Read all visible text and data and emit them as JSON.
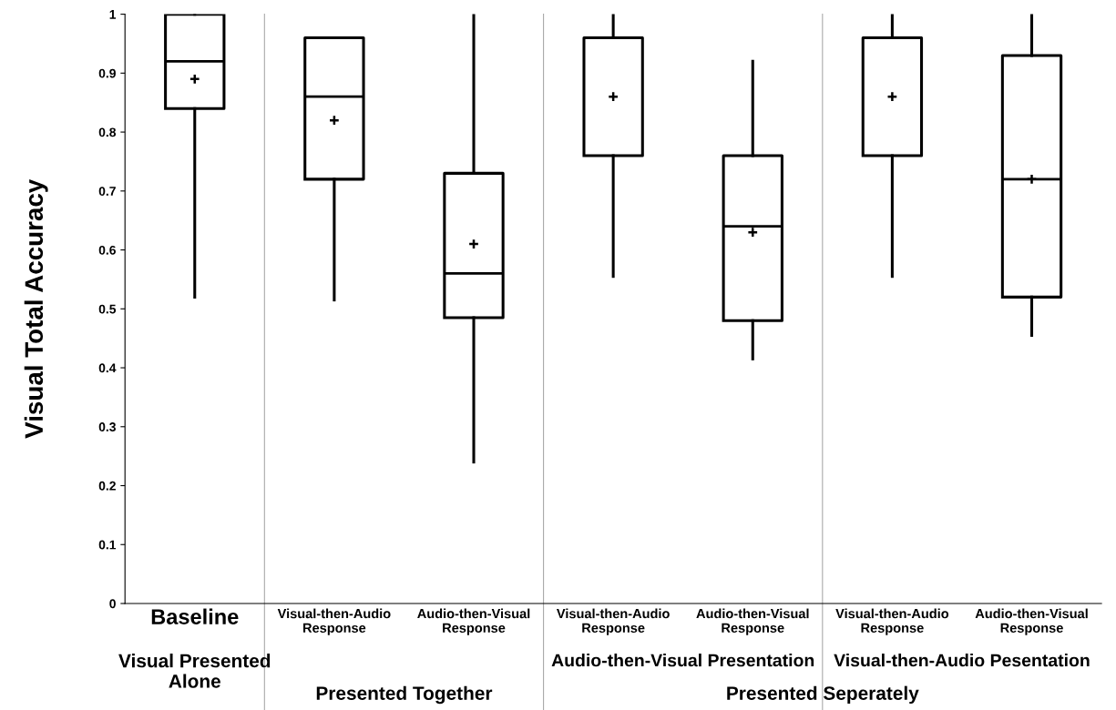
{
  "chart_data": {
    "type": "box",
    "ylabel": "Visual Total Accuracy",
    "categories": [
      "Baseline",
      "Visual-then-Audio\nResponse",
      "Audio-then-Visual\nResponse",
      "Visual-then-Audio\nResponse",
      "Audio-then-Visual\nResponse",
      "Visual-then-Audio\nResponse",
      "Audio-then-Visual\nResponse"
    ],
    "boxes": [
      {
        "low": 0.52,
        "q1": 0.84,
        "median": 0.92,
        "q3": 1.0,
        "high": 1.0,
        "mean": 0.89
      },
      {
        "low": 0.515,
        "q1": 0.72,
        "median": 0.86,
        "q3": 0.96,
        "high": 0.96,
        "mean": 0.82
      },
      {
        "low": 0.24,
        "q1": 0.485,
        "median": 0.56,
        "q3": 0.73,
        "high": 1.0,
        "mean": 0.61
      },
      {
        "low": 0.555,
        "q1": 0.76,
        "median": 0.96,
        "q3": 0.96,
        "high": 1.0,
        "mean": 0.86
      },
      {
        "low": 0.415,
        "q1": 0.48,
        "median": 0.64,
        "q3": 0.76,
        "high": 0.92,
        "mean": 0.63
      },
      {
        "low": 0.555,
        "q1": 0.76,
        "median": 0.96,
        "q3": 0.96,
        "high": 1.0,
        "mean": 0.86
      },
      {
        "low": 0.455,
        "q1": 0.52,
        "median": 0.72,
        "q3": 0.93,
        "high": 1.0,
        "mean": 0.72
      }
    ],
    "ylim": [
      0,
      1
    ],
    "yticks": [
      0,
      0.1,
      0.2,
      0.3,
      0.4,
      0.5,
      0.6,
      0.7,
      0.8,
      0.9,
      1
    ],
    "annotations": [
      "Visual Presented\nAlone",
      "Presented Together",
      "Audio-then-Visual Presentation",
      "Visual-then-Audio Pesentation",
      "Presented Seperately"
    ],
    "grid": false
  }
}
